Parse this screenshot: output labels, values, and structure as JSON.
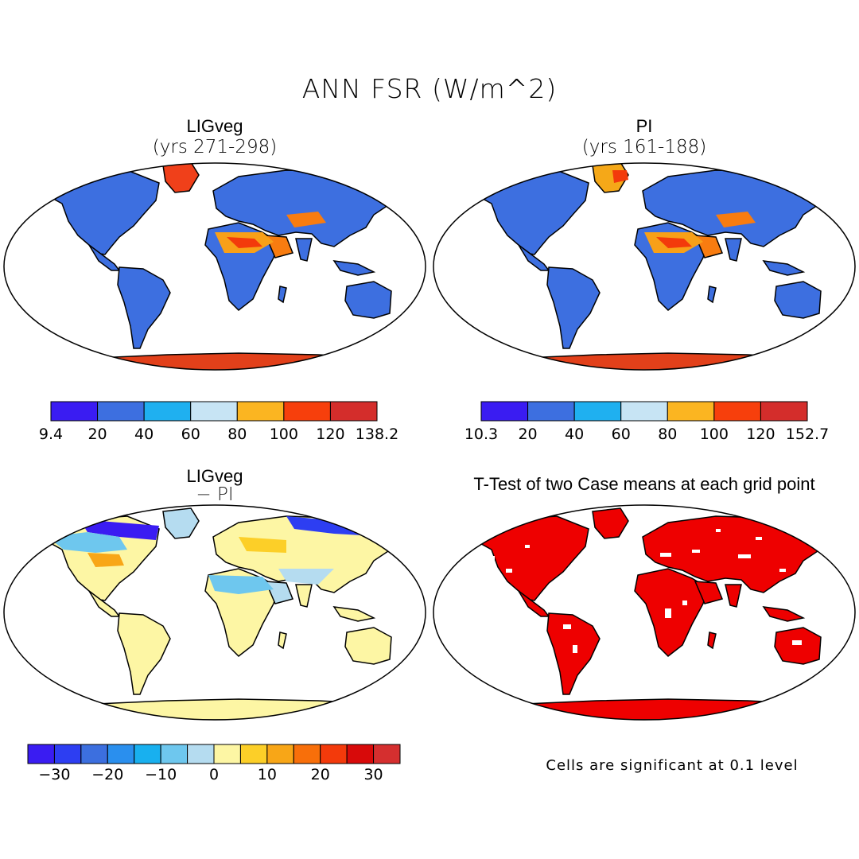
{
  "figure": {
    "title": "ANN FSR (W/m^2)"
  },
  "panels": [
    {
      "id": "ligveg",
      "title": "LIGveg",
      "subtitle": "(yrs 271-298)",
      "colorbar": {
        "ticks": [
          "9.4",
          "20",
          "40",
          "60",
          "80",
          "100",
          "120",
          "138.2"
        ],
        "colors": [
          "#3a1cf2",
          "#3d6fe0",
          "#1fb0f0",
          "#c7e4f4",
          "#fbb521",
          "#f73f0c",
          "#d42d2b"
        ]
      }
    },
    {
      "id": "pi",
      "title": "PI",
      "subtitle": "(yrs 161-188)",
      "colorbar": {
        "ticks": [
          "10.3",
          "20",
          "40",
          "60",
          "80",
          "100",
          "120",
          "152.7"
        ],
        "colors": [
          "#3a1cf2",
          "#3d6fe0",
          "#1fb0f0",
          "#c7e4f4",
          "#fbb521",
          "#f73f0c",
          "#d42d2b"
        ]
      }
    },
    {
      "id": "diff",
      "title": "LIGveg",
      "subtitle": "− PI",
      "colorbar": {
        "ticks": [
          "−30",
          "−20",
          "−10",
          "0",
          "10",
          "20",
          "30"
        ],
        "colors": [
          "#3a1cf2",
          "#2d3ef2",
          "#3c6fdf",
          "#2a8fee",
          "#18b0ef",
          "#6ec7ee",
          "#b5dcf0",
          "#fdf6a4",
          "#fccf28",
          "#f8a617",
          "#f86f0a",
          "#f33a0b",
          "#d80a0a",
          "#d52f2f"
        ]
      }
    },
    {
      "id": "ttest",
      "title": "T-Test of two Case means at each grid point",
      "note": "Cells are significant at 0.1 level"
    }
  ],
  "colors": {
    "land_low": "#3d6fe0",
    "land_high": "#f73f0c",
    "antarctica": "#e2401a",
    "significant": "#ee0000",
    "diff_land": "#fdf6a4"
  }
}
